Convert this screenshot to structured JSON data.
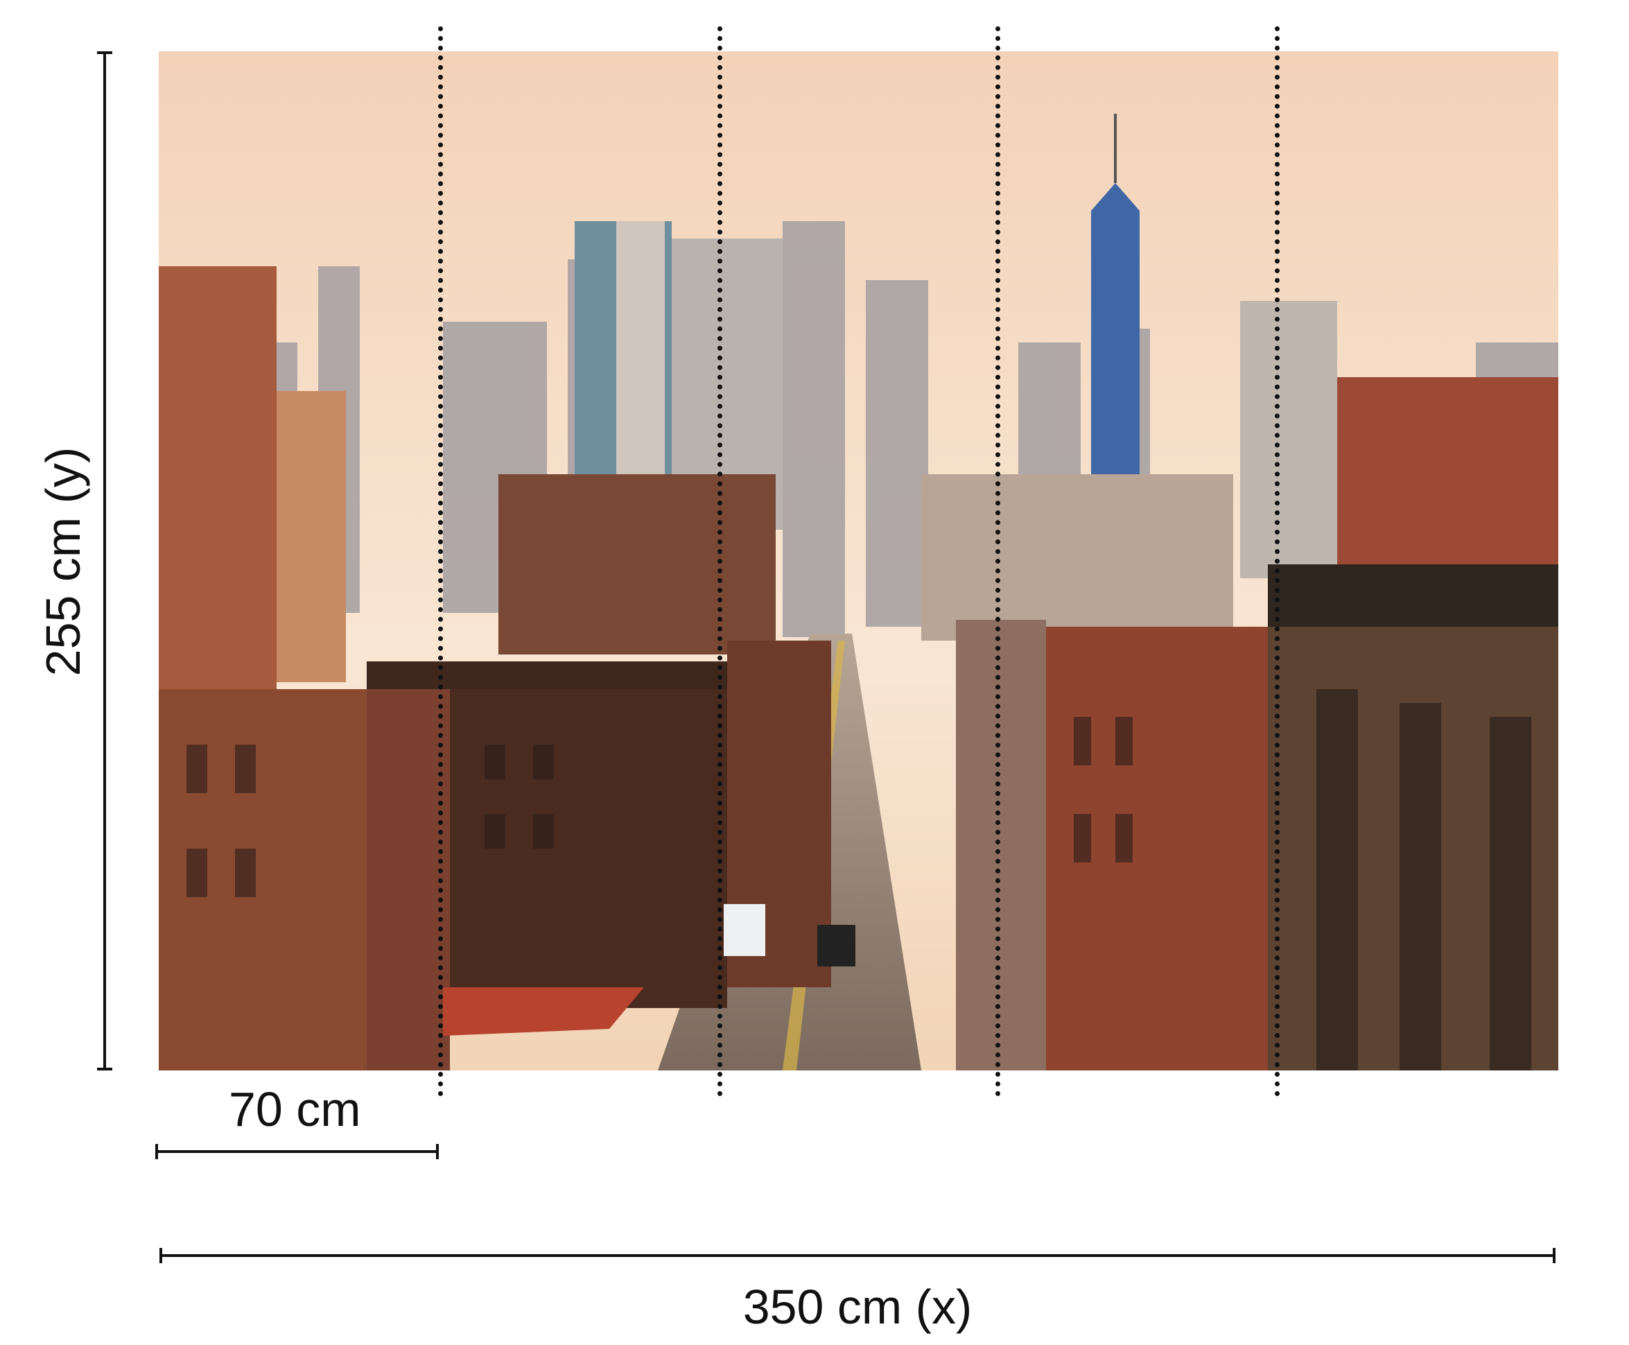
{
  "dimensions": {
    "height_label": "255 cm (y)",
    "panel_width_label": "70 cm",
    "width_label": "350 cm (x)"
  },
  "panels": {
    "count": 5
  },
  "image": {
    "subject": "city-skyline-street-photo",
    "colors": {
      "sky": "#f6dcc4",
      "brick": "#8a4a32",
      "dark_brick": "#4a2b20"
    }
  }
}
